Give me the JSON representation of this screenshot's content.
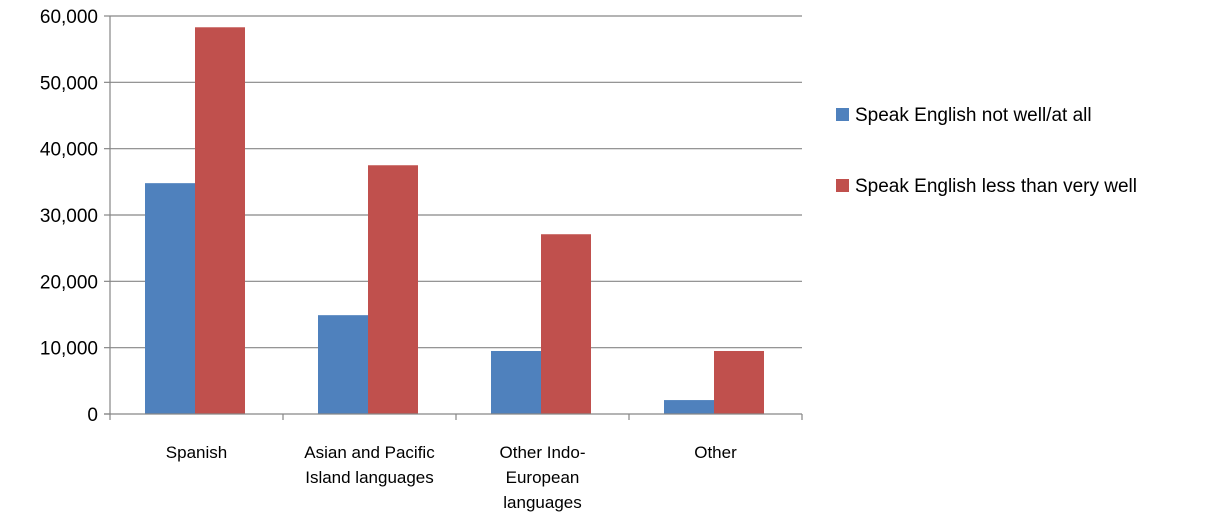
{
  "chart_data": {
    "type": "bar",
    "title": "",
    "xlabel": "",
    "ylabel": "",
    "ylim": [
      0,
      60000
    ],
    "y_ticks": [
      0,
      10000,
      20000,
      30000,
      40000,
      50000,
      60000
    ],
    "y_tick_labels": [
      "0",
      "10,000",
      "20,000",
      "30,000",
      "40,000",
      "50,000",
      "60,000"
    ],
    "grid": true,
    "legend_position": "right",
    "categories": [
      [
        "Spanish"
      ],
      [
        "Asian and Pacific",
        "Island languages"
      ],
      [
        "Other Indo-",
        "European",
        "languages"
      ],
      [
        "Other"
      ]
    ],
    "series": [
      {
        "name": "Speak English not well/at all",
        "color": "#4f81bd",
        "values": [
          34800,
          14900,
          9500,
          2100
        ]
      },
      {
        "name": "Speak English less than very well",
        "color": "#c0504d",
        "values": [
          58300,
          37500,
          27100,
          9500
        ]
      }
    ]
  }
}
